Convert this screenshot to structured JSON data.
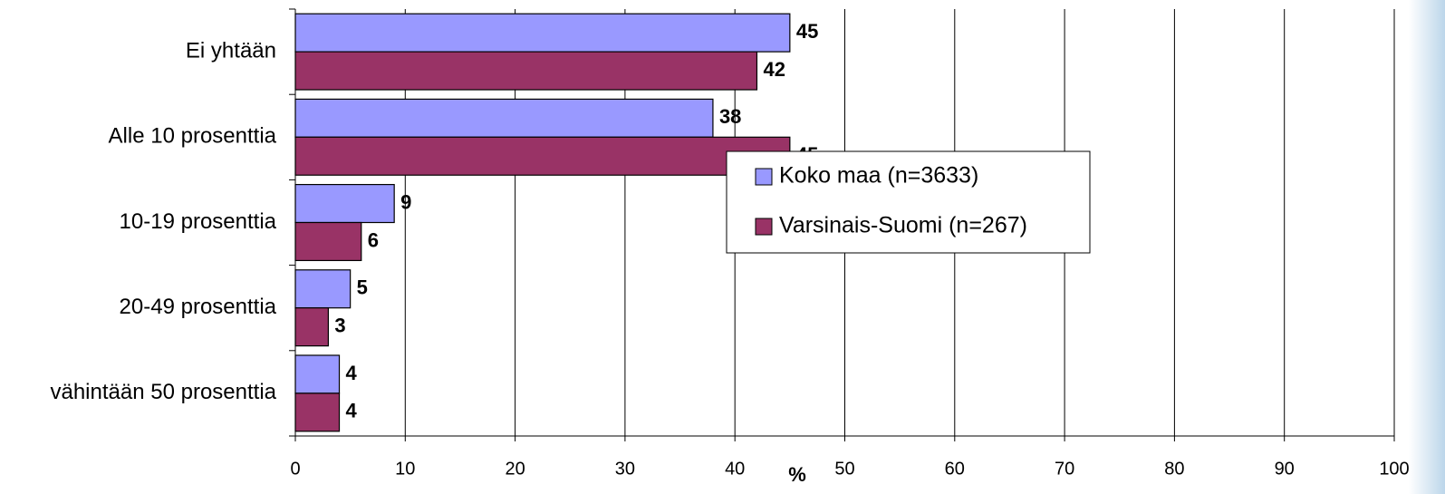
{
  "chart_data": {
    "type": "bar",
    "orientation": "horizontal",
    "categories": [
      "Ei yhtään",
      "Alle 10 prosenttia",
      "10-19 prosenttia",
      "20-49 prosenttia",
      "vähintään 50 prosenttia"
    ],
    "series": [
      {
        "name": "Koko maa (n=3633)",
        "color": "#9999ff",
        "values": [
          45,
          38,
          9,
          5,
          4
        ]
      },
      {
        "name": "Varsinais-Suomi (n=267)",
        "color": "#993366",
        "values": [
          42,
          45,
          6,
          3,
          4
        ]
      }
    ],
    "x_label": "%",
    "xlim": [
      0,
      100
    ],
    "xticks": [
      0,
      10,
      20,
      30,
      40,
      50,
      60,
      70,
      80,
      90,
      100
    ],
    "grid": true,
    "legend": "right"
  }
}
